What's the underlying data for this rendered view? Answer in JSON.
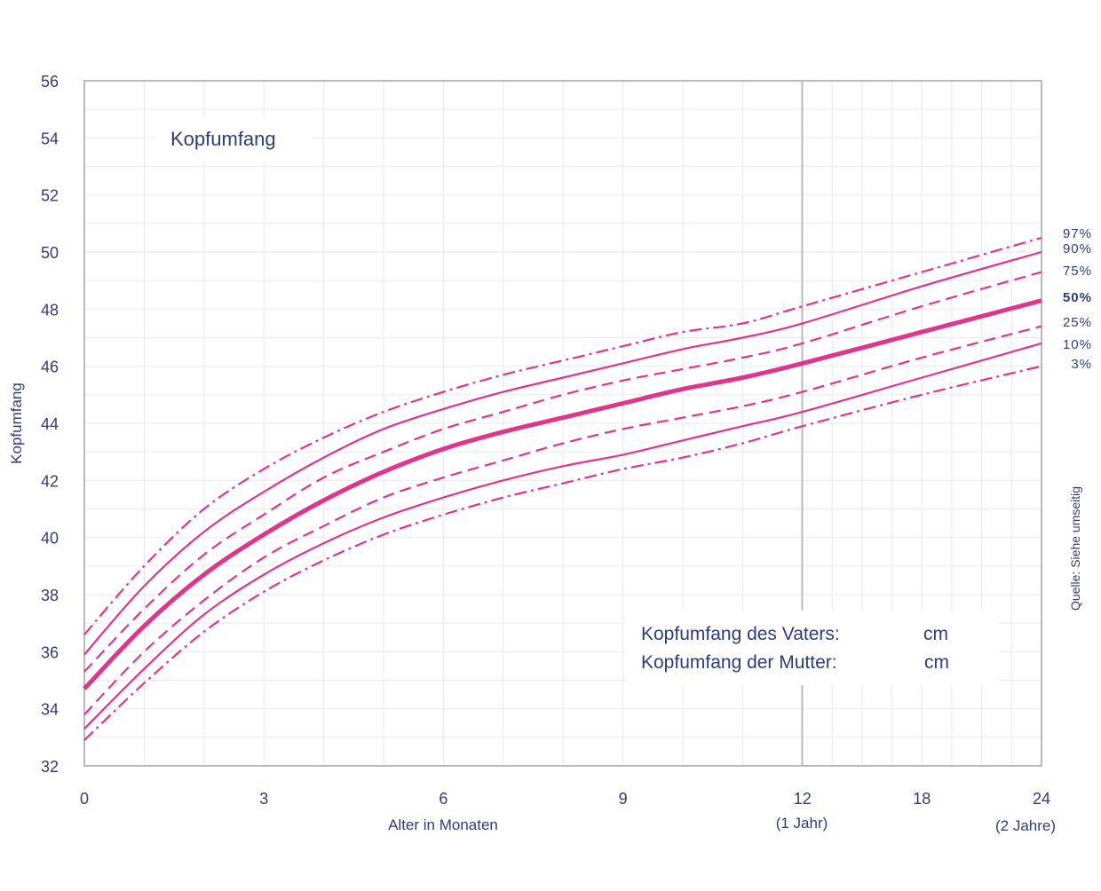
{
  "chart_data": {
    "type": "line",
    "title": "Kopfumfang",
    "ylabel": "Kopfumfang",
    "xlabel": "Alter in Monaten",
    "ylim": [
      32,
      56
    ],
    "y_ticks": [
      "32",
      "34",
      "36",
      "38",
      "40",
      "42",
      "44",
      "46",
      "48",
      "50",
      "52",
      "54",
      "56"
    ],
    "x_ticks": [
      "0",
      "3",
      "6",
      "9",
      "12",
      "18",
      "24"
    ],
    "x_tick_notes": [
      {
        "tick": "12",
        "note": "(1 Jahr)"
      },
      {
        "tick": "24",
        "note": "(2 Jahre)"
      }
    ],
    "source_note": "Quelle: Siehe umseitig",
    "grid": true,
    "line_color": "#e0358a",
    "x": [
      0,
      1,
      2,
      3,
      4,
      5,
      6,
      7,
      8,
      9,
      10,
      11,
      12,
      18,
      24
    ],
    "series": [
      {
        "name": "97%",
        "style": "dashdot",
        "values": [
          36.6,
          39.0,
          41.0,
          42.4,
          43.5,
          44.4,
          45.1,
          45.7,
          46.2,
          46.7,
          47.2,
          47.5,
          48.1,
          49.3,
          50.5
        ]
      },
      {
        "name": "90%",
        "style": "solid",
        "values": [
          35.9,
          38.3,
          40.2,
          41.6,
          42.8,
          43.8,
          44.5,
          45.1,
          45.6,
          46.1,
          46.6,
          47.0,
          47.5,
          48.8,
          50.0
        ]
      },
      {
        "name": "75%",
        "style": "dashed",
        "values": [
          35.3,
          37.5,
          39.4,
          40.8,
          42.1,
          43.0,
          43.8,
          44.4,
          45.0,
          45.5,
          45.9,
          46.3,
          46.8,
          48.1,
          49.3
        ]
      },
      {
        "name": "50%",
        "style": "bold",
        "values": [
          34.7,
          36.9,
          38.7,
          40.1,
          41.3,
          42.3,
          43.1,
          43.7,
          44.2,
          44.7,
          45.2,
          45.6,
          46.1,
          47.2,
          48.3
        ]
      },
      {
        "name": "25%",
        "style": "dashed",
        "values": [
          33.8,
          36.0,
          37.8,
          39.3,
          40.4,
          41.4,
          42.1,
          42.7,
          43.3,
          43.8,
          44.2,
          44.6,
          45.1,
          46.3,
          47.4
        ]
      },
      {
        "name": "10%",
        "style": "solid",
        "values": [
          33.3,
          35.4,
          37.3,
          38.7,
          39.8,
          40.7,
          41.4,
          42.0,
          42.5,
          42.9,
          43.4,
          43.9,
          44.4,
          45.6,
          46.8
        ]
      },
      {
        "name": "3%",
        "style": "dashdot",
        "values": [
          32.9,
          34.9,
          36.7,
          38.1,
          39.2,
          40.1,
          40.8,
          41.4,
          41.9,
          42.4,
          42.8,
          43.3,
          43.9,
          45.0,
          46.0
        ]
      }
    ]
  },
  "info_box": {
    "father_label": "Kopfumfang des Vaters:",
    "mother_label": "Kopfumfang der Mutter:",
    "unit": "cm"
  }
}
